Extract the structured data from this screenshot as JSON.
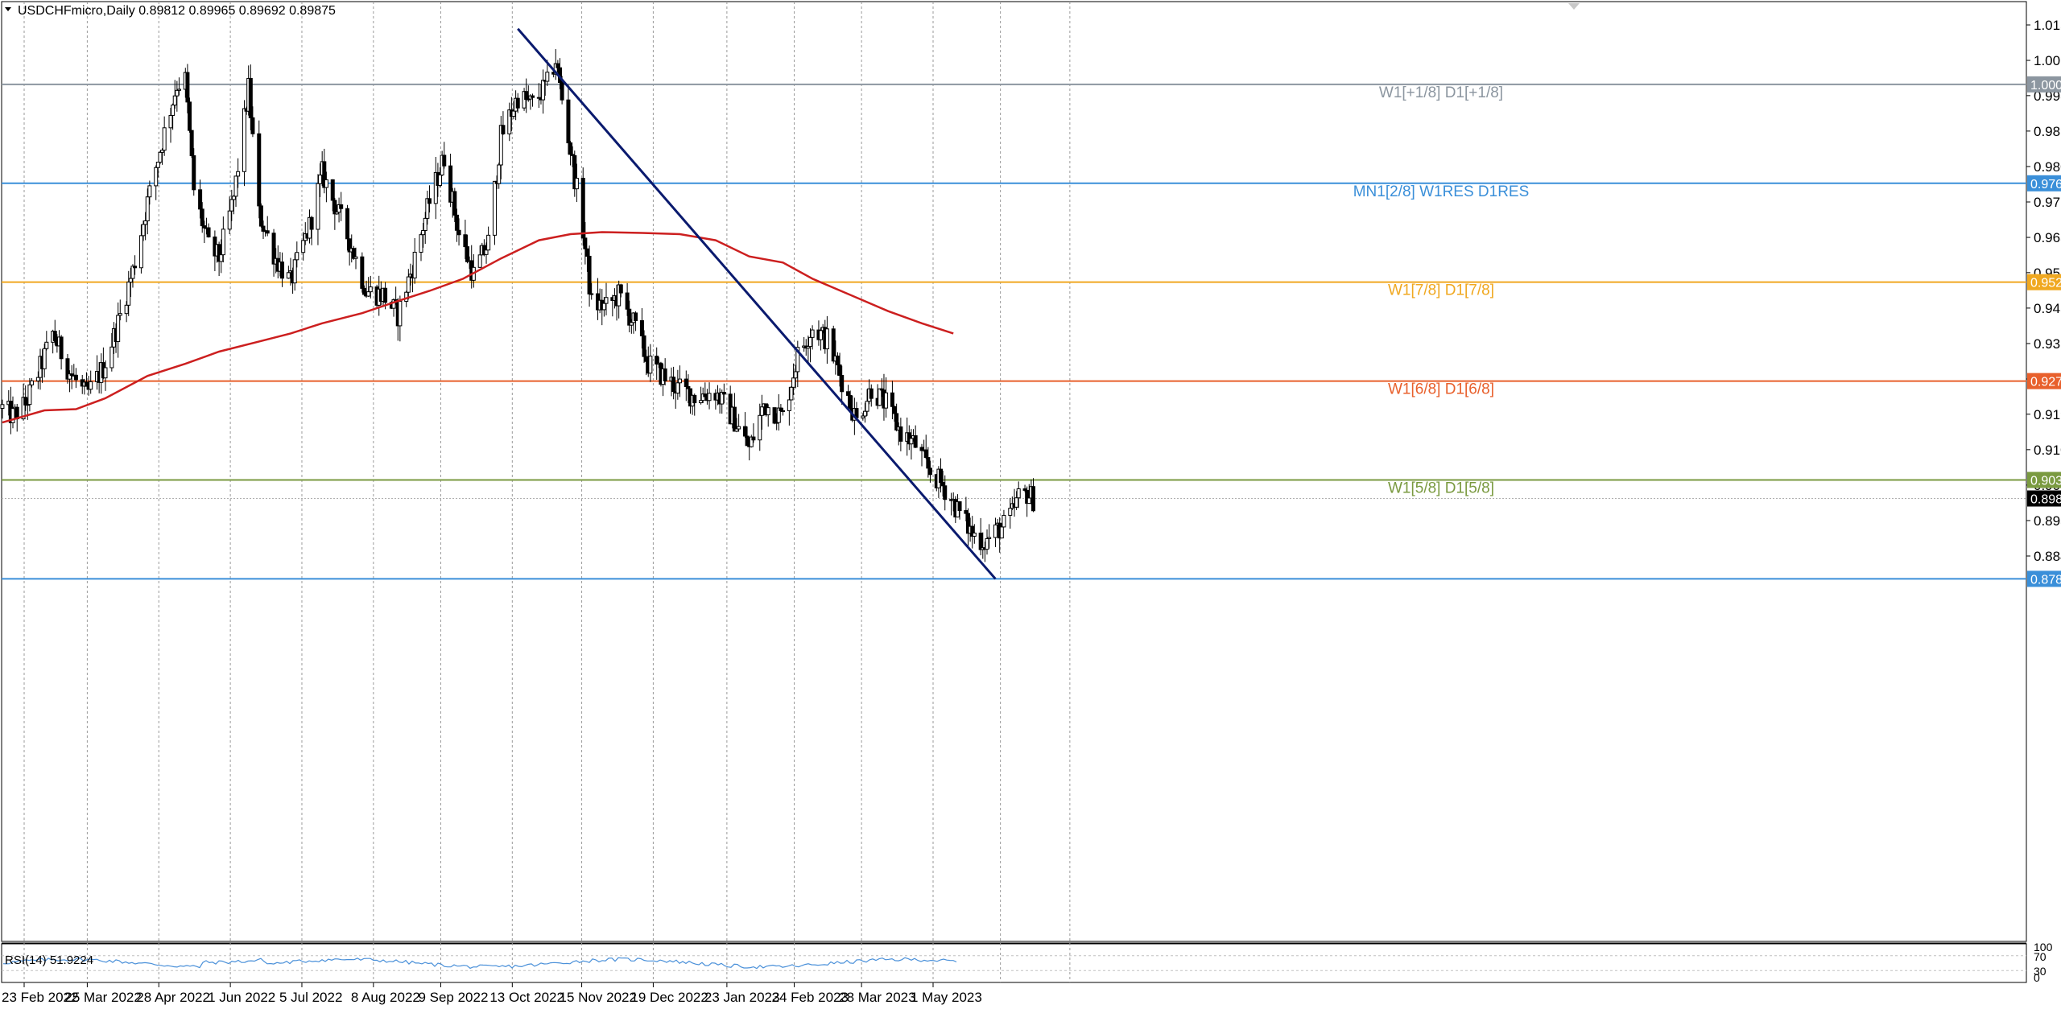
{
  "header": {
    "symbol_line": "USDCHFmicro,Daily  0.89812 0.89965 0.89692 0.89875"
  },
  "rsi": {
    "label": "RSI(14) 51.9224",
    "axis_labels": [
      "100",
      "70",
      "30",
      "0"
    ],
    "line_color": "#4a90d9"
  },
  "chart_data": {
    "type": "candlestick",
    "title": "USDCHFmicro,Daily",
    "ohlc_last": {
      "open": 0.89812,
      "high": 0.89965,
      "low": 0.89692,
      "close": 0.89875
    },
    "y_ticks": [
      1.01565,
      1.0069,
      0.9982,
      0.98945,
      0.9807,
      0.97195,
      0.9632,
      0.9545,
      0.94575,
      0.937,
      0.92825,
      0.91955,
      0.9108,
      0.90205,
      0.8933,
      0.88455
    ],
    "x_ticks": [
      "23 Feb 2022",
      "25 Mar 2022",
      "28 Apr 2022",
      "1 Jun 2022",
      "5 Jul 2022",
      "8 Aug 2022",
      "9 Sep 2022",
      "13 Oct 2022",
      "15 Nov 2022",
      "19 Dec 2022",
      "23 Jan 2023",
      "24 Feb 2023",
      "28 Mar 2023",
      "1 May 2023"
    ],
    "price_levels": [
      {
        "label": "W1[+1/8] D1[+1/8]",
        "price": "1.00098",
        "value": 1.00098,
        "color": "#8c96a0"
      },
      {
        "label": "MN1[2/8] W1RES D1RES",
        "price": "0.97656",
        "value": 0.97656,
        "color": "#3a8fd9"
      },
      {
        "label": "W1[7/8] D1[7/8]",
        "price": "0.95215",
        "value": 0.95215,
        "color": "#f0a820"
      },
      {
        "label": "W1[6/8] D1[6/8]",
        "price": "0.92773",
        "value": 0.92773,
        "color": "#e8602c"
      },
      {
        "label": "W1[5/8] D1[5/8]",
        "price": "0.90332",
        "value": 0.90332,
        "color": "#7a9a40"
      },
      {
        "label": "",
        "price": "0.87891",
        "value": 0.87891,
        "color": "#3a8fd9"
      }
    ],
    "current_price": {
      "price": "0.89875",
      "value": 0.89875
    },
    "trendline": {
      "from": {
        "date": "2022-10-21",
        "value": 1.0147
      },
      "to": {
        "date": "2023-06-05",
        "value": 0.8789
      },
      "color": "#0a1a6e"
    },
    "moving_average": {
      "color": "#cc1f1f",
      "points": [
        [
          "2022-02-18",
          0.9175
        ],
        [
          "2022-03-10",
          0.9205
        ],
        [
          "2022-03-25",
          0.9208
        ],
        [
          "2022-04-08",
          0.9235
        ],
        [
          "2022-04-28",
          0.929
        ],
        [
          "2022-05-16",
          0.932
        ],
        [
          "2022-06-01",
          0.935
        ],
        [
          "2022-06-20",
          0.9375
        ],
        [
          "2022-07-05",
          0.9395
        ],
        [
          "2022-07-20",
          0.942
        ],
        [
          "2022-08-08",
          0.9445
        ],
        [
          "2022-08-25",
          0.9475
        ],
        [
          "2022-09-09",
          0.95
        ],
        [
          "2022-09-25",
          0.953
        ],
        [
          "2022-10-13",
          0.958
        ],
        [
          "2022-10-31",
          0.9625
        ],
        [
          "2022-11-15",
          0.964
        ],
        [
          "2022-11-30",
          0.9645
        ],
        [
          "2022-12-19",
          0.9643
        ],
        [
          "2023-01-06",
          0.964
        ],
        [
          "2023-01-23",
          0.9625
        ],
        [
          "2023-02-08",
          0.9585
        ],
        [
          "2023-02-24",
          0.957
        ],
        [
          "2023-03-10",
          0.953
        ],
        [
          "2023-03-28",
          0.949
        ],
        [
          "2023-04-15",
          0.945
        ],
        [
          "2023-05-01",
          0.942
        ],
        [
          "2023-05-16",
          0.9395
        ]
      ]
    },
    "price_path": [
      [
        "2022-02-18",
        0.921
      ],
      [
        "2022-02-23",
        0.919
      ],
      [
        "2022-03-01",
        0.922
      ],
      [
        "2022-03-08",
        0.931
      ],
      [
        "2022-03-14",
        0.9395
      ],
      [
        "2022-03-22",
        0.93
      ],
      [
        "2022-03-30",
        0.924
      ],
      [
        "2022-04-07",
        0.931
      ],
      [
        "2022-04-14",
        0.942
      ],
      [
        "2022-04-21",
        0.955
      ],
      [
        "2022-04-28",
        0.972
      ],
      [
        "2022-05-05",
        0.987
      ],
      [
        "2022-05-12",
        1.001
      ],
      [
        "2022-05-16",
        1.002
      ],
      [
        "2022-05-20",
        0.975
      ],
      [
        "2022-05-27",
        0.961
      ],
      [
        "2022-06-01",
        0.958
      ],
      [
        "2022-06-08",
        0.973
      ],
      [
        "2022-06-15",
        1.0
      ],
      [
        "2022-06-20",
        0.969
      ],
      [
        "2022-06-28",
        0.958
      ],
      [
        "2022-07-05",
        0.952
      ],
      [
        "2022-07-14",
        0.966
      ],
      [
        "2022-07-20",
        0.979
      ],
      [
        "2022-07-27",
        0.97
      ],
      [
        "2022-08-03",
        0.961
      ],
      [
        "2022-08-10",
        0.95
      ],
      [
        "2022-08-18",
        0.949
      ],
      [
        "2022-08-25",
        0.944
      ],
      [
        "2022-09-01",
        0.956
      ],
      [
        "2022-09-09",
        0.972
      ],
      [
        "2022-09-16",
        0.983
      ],
      [
        "2022-09-23",
        0.964
      ],
      [
        "2022-09-30",
        0.954
      ],
      [
        "2022-10-07",
        0.962
      ],
      [
        "2022-10-13",
        0.988
      ],
      [
        "2022-10-21",
        0.998
      ],
      [
        "2022-10-28",
        0.996
      ],
      [
        "2022-11-04",
        1.001
      ],
      [
        "2022-11-08",
        1.007
      ],
      [
        "2022-11-14",
        0.988
      ],
      [
        "2022-11-21",
        0.965
      ],
      [
        "2022-11-25",
        0.947
      ],
      [
        "2022-12-02",
        0.946
      ],
      [
        "2022-12-08",
        0.949
      ],
      [
        "2022-12-15",
        0.942
      ],
      [
        "2022-12-22",
        0.932
      ],
      [
        "2023-01-05",
        0.926
      ],
      [
        "2023-01-13",
        0.924
      ],
      [
        "2023-01-23",
        0.925
      ],
      [
        "2023-02-01",
        0.918
      ],
      [
        "2023-02-08",
        0.911
      ],
      [
        "2023-02-15",
        0.922
      ],
      [
        "2023-02-24",
        0.919
      ],
      [
        "2023-03-03",
        0.934
      ],
      [
        "2023-03-10",
        0.941
      ],
      [
        "2023-03-17",
        0.938
      ],
      [
        "2023-03-24",
        0.928
      ],
      [
        "2023-03-31",
        0.918
      ],
      [
        "2023-04-07",
        0.926
      ],
      [
        "2023-04-14",
        0.922
      ],
      [
        "2023-04-21",
        0.915
      ],
      [
        "2023-04-28",
        0.912
      ],
      [
        "2023-05-04",
        0.906
      ],
      [
        "2023-05-11",
        0.902
      ],
      [
        "2023-05-18",
        0.896
      ],
      [
        "2023-05-25",
        0.89
      ],
      [
        "2023-05-31",
        0.888
      ],
      [
        "2023-06-02",
        0.889
      ],
      [
        "2023-06-06",
        0.891
      ],
      [
        "2023-06-09",
        0.892
      ],
      [
        "2023-06-13",
        0.895
      ],
      [
        "2023-06-16",
        0.899
      ],
      [
        "2023-06-20",
        0.9
      ],
      [
        "2023-06-23",
        0.8987
      ]
    ]
  }
}
